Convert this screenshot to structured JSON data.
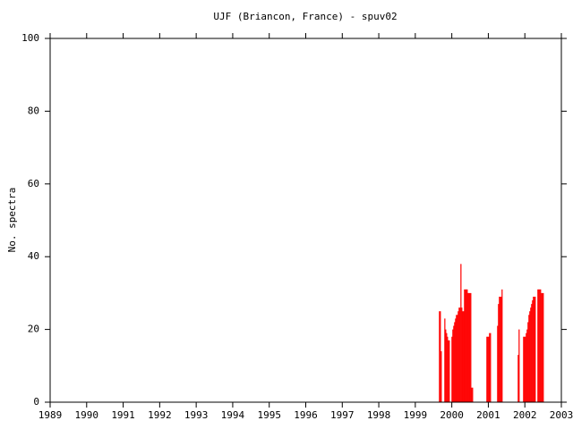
{
  "chart_data": {
    "type": "bar",
    "title": "UJF (Briancon, France) - spuv02",
    "y_label": "No. spectra",
    "color": "#ff0000",
    "grid": false,
    "xlim": [
      1989,
      2003
    ],
    "xticks": [
      1989,
      1990,
      1991,
      1992,
      1993,
      1994,
      1995,
      1996,
      1997,
      1998,
      1999,
      2000,
      2001,
      2002,
      2003
    ],
    "ylim": [
      0,
      100
    ],
    "yticks": [
      0,
      20,
      40,
      60,
      80,
      100
    ],
    "x": [
      1999.662,
      1999.686,
      1999.711,
      1999.809,
      1999.833,
      1999.858,
      1999.882,
      1999.907,
      1999.931,
      2000.005,
      2000.029,
      2000.054,
      2000.078,
      2000.103,
      2000.127,
      2000.152,
      2000.176,
      2000.201,
      2000.225,
      2000.25,
      2000.275,
      2000.299,
      2000.324,
      2000.348,
      2000.373,
      2000.397,
      2000.422,
      2000.446,
      2000.471,
      2000.495,
      2000.52,
      2000.544,
      2000.569,
      2000.961,
      2000.985,
      2001.01,
      2001.034,
      2001.059,
      2001.255,
      2001.279,
      2001.304,
      2001.328,
      2001.353,
      2001.377,
      2001.819,
      2001.843,
      2001.966,
      2001.99,
      2002.015,
      2002.039,
      2002.064,
      2002.088,
      2002.113,
      2002.137,
      2002.162,
      2002.186,
      2002.211,
      2002.235,
      2002.26,
      2002.284,
      2002.358,
      2002.382,
      2002.407,
      2002.431,
      2002.456,
      2002.48,
      2002.505
    ],
    "values": [
      25,
      25,
      14,
      23,
      20,
      19,
      18,
      17,
      17,
      18,
      20,
      21,
      22,
      23,
      24,
      24,
      25,
      26,
      26,
      38,
      26,
      25,
      25,
      31,
      31,
      31,
      31,
      30,
      30,
      30,
      30,
      4,
      4,
      18,
      18,
      18,
      19,
      19,
      21,
      27,
      29,
      29,
      29,
      31,
      13,
      20,
      18,
      18,
      18,
      19,
      20,
      22,
      24,
      25,
      26,
      27,
      28,
      29,
      29,
      29,
      31,
      31,
      31,
      31,
      30,
      30,
      30
    ]
  }
}
